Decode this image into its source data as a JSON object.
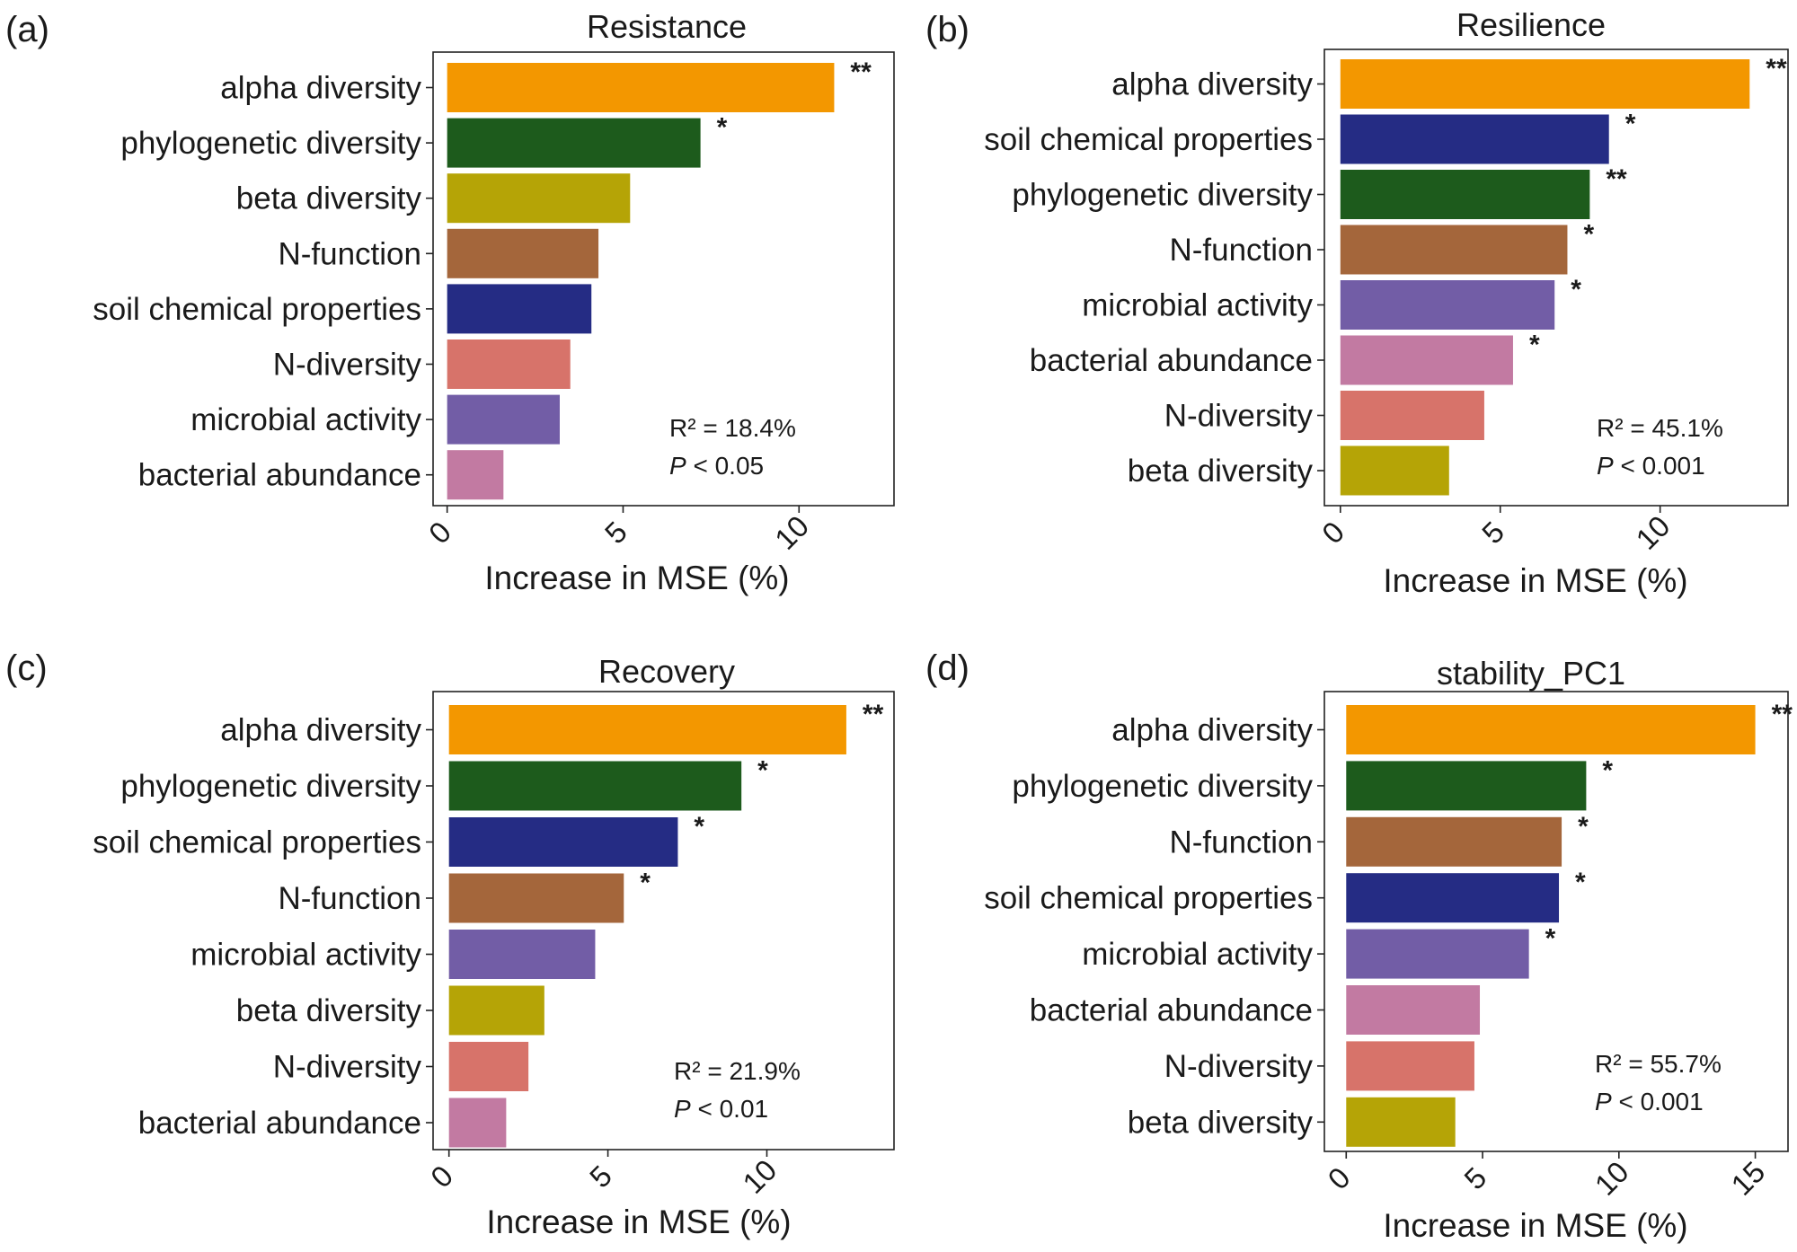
{
  "figure": {
    "xlabel": "Increase in MSE (%)"
  },
  "colors": {
    "alpha diversity": "#F39700",
    "phylogenetic diversity": "#1D5B1C",
    "beta diversity": "#B5A406",
    "N-function": "#A4663B",
    "soil chemical properties": "#252C84",
    "N-diversity": "#D7736A",
    "microbial activity": "#725DA6",
    "bacterial abundance": "#C27AA2"
  },
  "chart_data": [
    {
      "type": "bar",
      "orientation": "horizontal",
      "panel_label": "(a)",
      "title": "Resistance",
      "xlabel": "Increase in MSE (%)",
      "xlim": [
        -0.4,
        12.7
      ],
      "xticks": [
        "0",
        "5",
        "10"
      ],
      "categories": [
        "alpha diversity",
        "phylogenetic diversity",
        "beta diversity",
        "N-function",
        "soil chemical properties",
        "N-diversity",
        "microbial activity",
        "bacterial abundance"
      ],
      "values": [
        11.0,
        7.2,
        5.2,
        4.3,
        4.1,
        3.5,
        3.2,
        1.6
      ],
      "significance": [
        "**",
        "*",
        "",
        "",
        "",
        "",
        "",
        ""
      ],
      "r2": "R² = 18.4%",
      "p_italic": "P",
      "p_rest": " < 0.05"
    },
    {
      "type": "bar",
      "orientation": "horizontal",
      "panel_label": "(b)",
      "title": "Resilience",
      "xlabel": "Increase in MSE (%)",
      "xlim": [
        -0.5,
        14.0
      ],
      "xticks": [
        "0",
        "5",
        "10"
      ],
      "categories": [
        "alpha diversity",
        "soil chemical properties",
        "phylogenetic diversity",
        "N-function",
        "microbial activity",
        "bacterial abundance",
        "N-diversity",
        "beta diversity"
      ],
      "values": [
        12.8,
        8.4,
        7.8,
        7.1,
        6.7,
        5.4,
        4.5,
        3.4
      ],
      "significance": [
        "**",
        "*",
        "**",
        "*",
        "*",
        "*",
        "",
        ""
      ],
      "r2": "R² = 45.1%",
      "p_italic": "P",
      "p_rest": " < 0.001"
    },
    {
      "type": "bar",
      "orientation": "horizontal",
      "panel_label": "(c)",
      "title": "Recovery",
      "xlabel": "Increase in MSE (%)",
      "xlim": [
        -0.5,
        14.0
      ],
      "xticks": [
        "0",
        "5",
        "10"
      ],
      "categories": [
        "alpha diversity",
        "phylogenetic diversity",
        "soil chemical properties",
        "N-function",
        "microbial activity",
        "beta diversity",
        "N-diversity",
        "bacterial abundance"
      ],
      "values": [
        12.5,
        9.2,
        7.2,
        5.5,
        4.6,
        3.0,
        2.5,
        1.8
      ],
      "significance": [
        "**",
        "*",
        "*",
        "*",
        "",
        "",
        "",
        ""
      ],
      "r2": "R² = 21.9%",
      "p_italic": "P",
      "p_rest": " < 0.01"
    },
    {
      "type": "bar",
      "orientation": "horizontal",
      "panel_label": "(d)",
      "title": "stability_PC1",
      "xlabel": "Increase in MSE (%)",
      "xlim": [
        -0.8,
        16.2
      ],
      "xticks": [
        "0",
        "5",
        "10",
        "15"
      ],
      "categories": [
        "alpha diversity",
        "phylogenetic diversity",
        "N-function",
        "soil chemical properties",
        "microbial activity",
        "bacterial abundance",
        "N-diversity",
        "beta diversity"
      ],
      "values": [
        15.0,
        8.8,
        7.9,
        7.8,
        6.7,
        4.9,
        4.7,
        4.0
      ],
      "significance": [
        "**",
        "*",
        "*",
        "*",
        "*",
        "",
        "",
        ""
      ],
      "r2": "R² = 55.7%",
      "p_italic": "P",
      "p_rest": " < 0.001"
    }
  ]
}
